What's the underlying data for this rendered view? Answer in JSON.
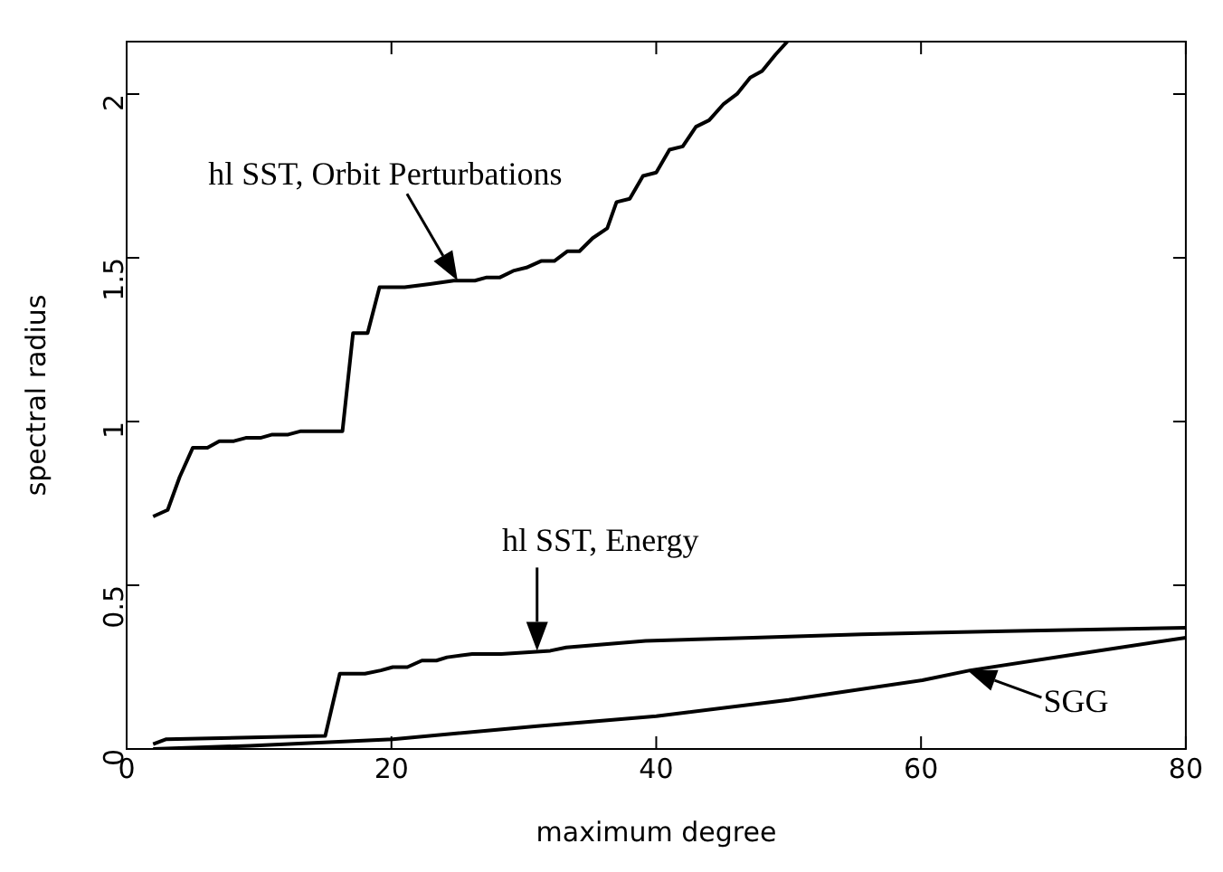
{
  "chart_data": {
    "type": "line",
    "xlabel": "maximum degree",
    "ylabel": "spectral radius",
    "xlim": [
      0,
      80
    ],
    "ylim": [
      0,
      2.16
    ],
    "xticks": [
      0,
      20,
      40,
      60,
      80
    ],
    "yticks": [
      0,
      0.5,
      1,
      1.5,
      2
    ],
    "grid": false,
    "legend": false,
    "marker": "none",
    "line_style": "solid",
    "series": [
      {
        "color": "#000000",
        "x": [
          2,
          3.1,
          4,
          5,
          6.1,
          7,
          8.1,
          9,
          10.1,
          11,
          12.2,
          13.1,
          14.2,
          16.3,
          17.1,
          18.2,
          19.1,
          21,
          22.9,
          24.7,
          26.3,
          27.2,
          28.2,
          29.2,
          30.2,
          31.3,
          32.3,
          33.3,
          34.2,
          35.2,
          36.3,
          37,
          38,
          39,
          40,
          41,
          42,
          43,
          44,
          45.1,
          46.1,
          47.1,
          48,
          49,
          49.9
        ],
        "values": [
          0.71,
          0.73,
          0.83,
          0.92,
          0.92,
          0.94,
          0.94,
          0.95,
          0.95,
          0.96,
          0.96,
          0.97,
          0.97,
          0.97,
          1.27,
          1.27,
          1.41,
          1.41,
          1.42,
          1.43,
          1.43,
          1.44,
          1.44,
          1.46,
          1.47,
          1.49,
          1.49,
          1.52,
          1.52,
          1.56,
          1.59,
          1.67,
          1.68,
          1.75,
          1.76,
          1.83,
          1.84,
          1.9,
          1.92,
          1.97,
          2,
          2.05,
          2.07,
          2.12,
          2.16
        ]
      },
      {
        "color": "#000000",
        "x": [
          2,
          3,
          15,
          16.1,
          18,
          19.2,
          20.1,
          21.2,
          22.3,
          23.4,
          24.2,
          26.1,
          28.3,
          32,
          33.2,
          39.2,
          47.3,
          55.5,
          66.4,
          80
        ],
        "values": [
          0.015,
          0.03,
          0.04,
          0.23,
          0.23,
          0.24,
          0.25,
          0.25,
          0.27,
          0.27,
          0.28,
          0.29,
          0.29,
          0.3,
          0.31,
          0.33,
          0.34,
          0.35,
          0.36,
          0.37
        ]
      },
      {
        "color": "#000000",
        "x": [
          2,
          9.3,
          20.1,
          31,
          40,
          50,
          60.1,
          63.7,
          71.8,
          80
        ],
        "values": [
          0,
          0.01,
          0.03,
          0.07,
          0.1,
          0.15,
          0.21,
          0.24,
          0.29,
          0.34
        ]
      }
    ],
    "annotations": [
      {
        "text": "hl SST, Orbit Perturbations",
        "x": 25,
        "y": 1.43
      },
      {
        "text": "hl SST, Energy",
        "x": 31,
        "y": 0.3
      },
      {
        "text": "SGG",
        "x": 63.5,
        "y": 0.24
      }
    ]
  }
}
